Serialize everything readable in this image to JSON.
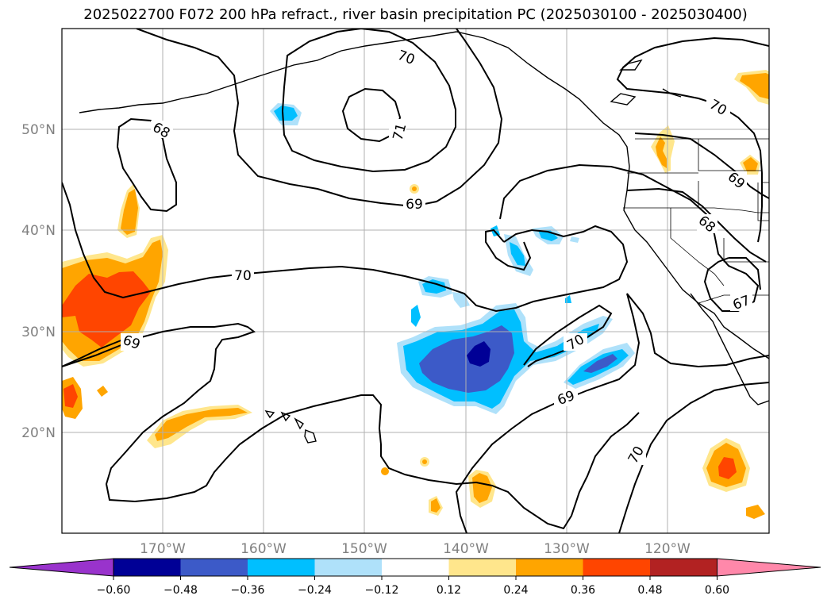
{
  "title": "2025022700 F072 200 hPa refract., river basin precipitation PC (2025030100 - 2025030400)",
  "map": {
    "lat_labels": [
      "50°N",
      "40°N",
      "30°N",
      "20°N"
    ],
    "lon_labels": [
      "170°W",
      "160°W",
      "150°W",
      "140°W",
      "130°W",
      "120°W"
    ],
    "contour_labels": [
      "70",
      "71",
      "68",
      "69",
      "70",
      "69",
      "70",
      "69",
      "70",
      "68",
      "69",
      "67",
      "70"
    ]
  },
  "colorbar": {
    "ticks": [
      "−0.60",
      "−0.48",
      "−0.36",
      "−0.24",
      "−0.12",
      "0.12",
      "0.24",
      "0.36",
      "0.48",
      "0.60"
    ],
    "colors": [
      "#9933cc",
      "#000096",
      "#3c5ac8",
      "#00bfff",
      "#afe1fa",
      "#ffffff",
      "#ffe68c",
      "#ffa500",
      "#ff4500",
      "#b22222",
      "#ff88aa"
    ]
  },
  "chart_data": {
    "type": "heatmap",
    "title": "2025022700 F072 200 hPa refract., river basin precipitation PC (2025030100 - 2025030400)",
    "xlabel": "",
    "ylabel": "",
    "xlim": [
      "180°W",
      "110°W"
    ],
    "ylim": [
      "10°N",
      "60°N"
    ],
    "contour_levels": [
      67,
      68,
      69,
      70,
      71
    ],
    "colorbar_levels": [
      -0.6,
      -0.48,
      -0.36,
      -0.24,
      -0.12,
      0.12,
      0.24,
      0.36,
      0.48,
      0.6
    ],
    "grid": true
  }
}
